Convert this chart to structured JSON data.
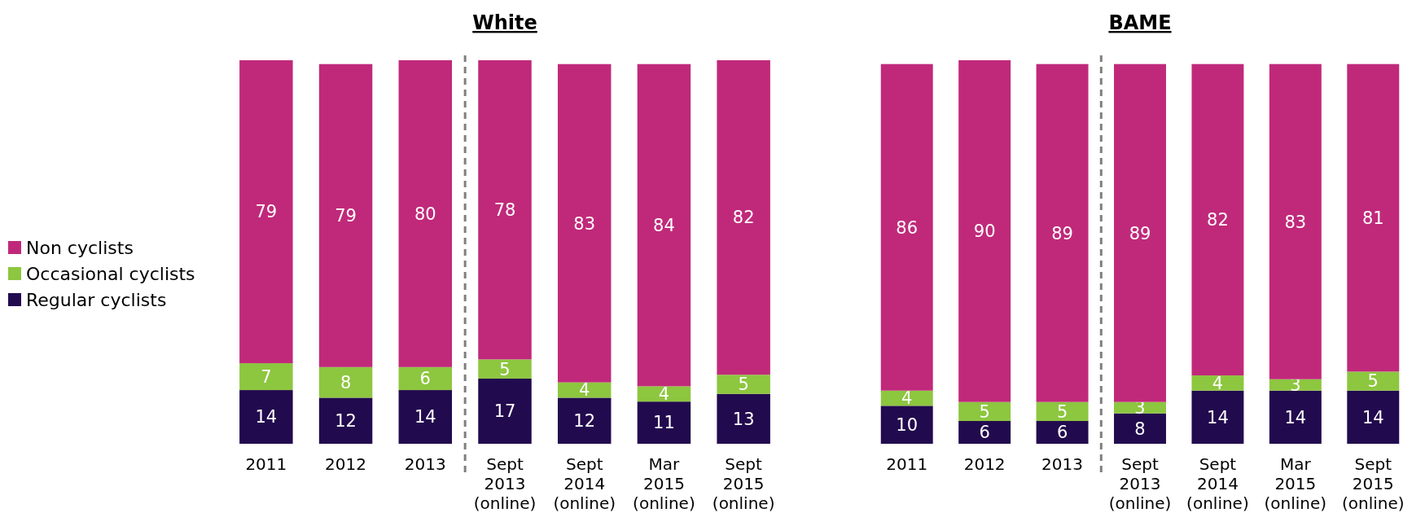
{
  "chart_data": [
    {
      "type": "bar",
      "title": "White",
      "categories": [
        "2011",
        "2012",
        "2013",
        "Sept 2013 (online)",
        "Sept 2014 (online)",
        "Mar 2015 (online)",
        "Sept 2015 (online)"
      ],
      "series": [
        {
          "name": "Regular cyclists",
          "color": "#220a4e",
          "values": [
            14,
            12,
            14,
            17,
            12,
            11,
            13
          ]
        },
        {
          "name": "Occasional cyclists",
          "color": "#8dc63f",
          "values": [
            7,
            8,
            6,
            5,
            4,
            4,
            5
          ]
        },
        {
          "name": "Non cyclists",
          "color": "#c0297a",
          "values": [
            79,
            79,
            80,
            78,
            83,
            84,
            82
          ]
        }
      ],
      "stacked": true,
      "data_labels": true,
      "tick_labels": "x",
      "legend": "left"
    },
    {
      "type": "bar",
      "title": "BAME",
      "categories": [
        "2011",
        "2012",
        "2013",
        "Sept 2013 (online)",
        "Sept 2014 (online)",
        "Mar 2015 (online)",
        "Sept 2015 (online)"
      ],
      "series": [
        {
          "color": "#220a4e",
          "values": [
            10,
            6,
            6,
            8,
            14,
            14,
            14
          ]
        },
        {
          "color": "#8dc63f",
          "values": [
            4,
            5,
            5,
            3,
            4,
            3,
            5
          ]
        },
        {
          "color": "#c0297a",
          "values": [
            86,
            90,
            89,
            89,
            82,
            83,
            81
          ]
        }
      ],
      "stacked": true,
      "data_labels": true,
      "tick_labels": "x"
    }
  ]
}
